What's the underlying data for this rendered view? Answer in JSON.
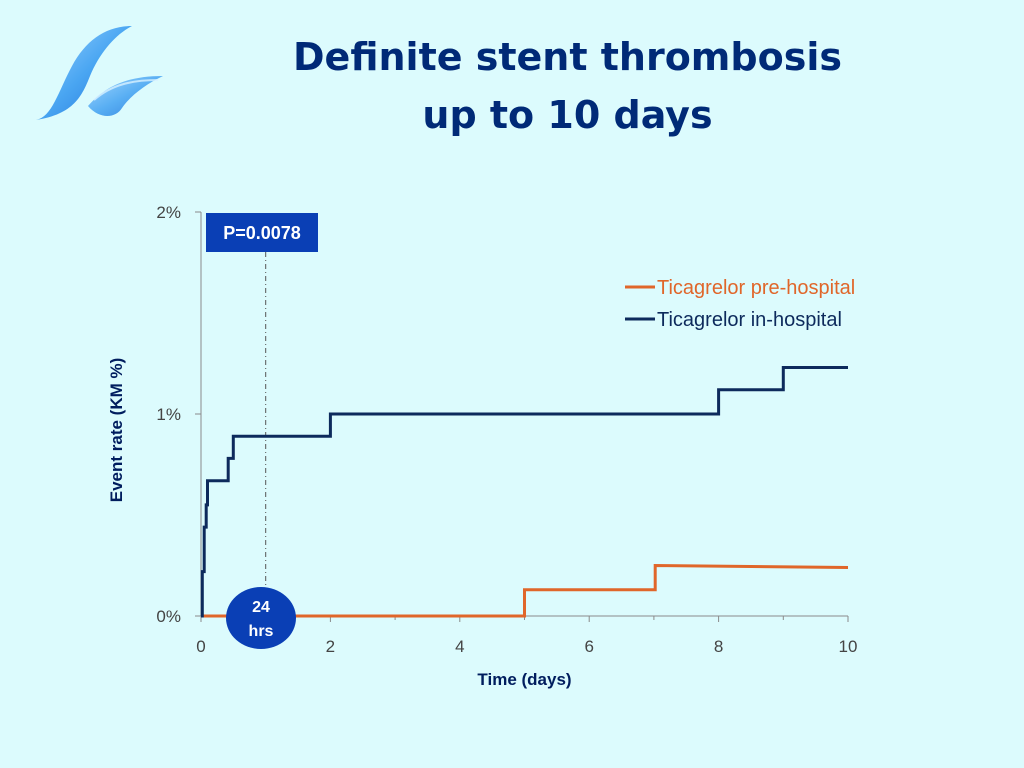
{
  "slide": {
    "title_line1": "Definite stent thrombosis",
    "title_line2": "up to 10 days"
  },
  "colors": {
    "background": "#dcfbfd",
    "title": "#002a77",
    "pre_hospital": "#e0662a",
    "in_hospital": "#0d2a5c",
    "badge": "#0a3fb5"
  },
  "logo": {
    "icon": "wave-logo-icon"
  },
  "annotations": {
    "p_value": "P=0.0078",
    "time_marker_line1": "24",
    "time_marker_line2": "hrs"
  },
  "chart_data": {
    "type": "line",
    "step": true,
    "title": "",
    "xlabel": "Time (days)",
    "ylabel": "Event rate (KM %)",
    "xlim": [
      0,
      10
    ],
    "ylim": [
      0,
      2
    ],
    "x_ticks": [
      0,
      2,
      4,
      6,
      8,
      10
    ],
    "x_tick_labels": [
      "0",
      "2",
      "4",
      "6",
      "8",
      "10"
    ],
    "y_ticks": [
      0,
      1,
      2
    ],
    "y_tick_labels": [
      "0%",
      "1%",
      "2%"
    ],
    "reference_line_x": 1,
    "legend_position": "top-right",
    "series": [
      {
        "name": "Ticagrelor pre-hospital",
        "color": "#e0662a",
        "points": [
          [
            0,
            0
          ],
          [
            5,
            0
          ],
          [
            5,
            0.13
          ],
          [
            7.02,
            0.13
          ],
          [
            7.02,
            0.25
          ],
          [
            10,
            0.24
          ]
        ]
      },
      {
        "name": "Ticagrelor in-hospital",
        "color": "#0d2a5c",
        "points": [
          [
            0,
            0
          ],
          [
            0.02,
            0
          ],
          [
            0.02,
            0.22
          ],
          [
            0.05,
            0.22
          ],
          [
            0.05,
            0.44
          ],
          [
            0.08,
            0.44
          ],
          [
            0.08,
            0.55
          ],
          [
            0.1,
            0.55
          ],
          [
            0.1,
            0.67
          ],
          [
            0.42,
            0.67
          ],
          [
            0.42,
            0.78
          ],
          [
            0.5,
            0.78
          ],
          [
            0.5,
            0.89
          ],
          [
            2,
            0.89
          ],
          [
            2,
            1.0
          ],
          [
            8,
            1.0
          ],
          [
            8,
            1.12
          ],
          [
            9,
            1.12
          ],
          [
            9,
            1.23
          ],
          [
            10,
            1.23
          ]
        ]
      }
    ]
  }
}
